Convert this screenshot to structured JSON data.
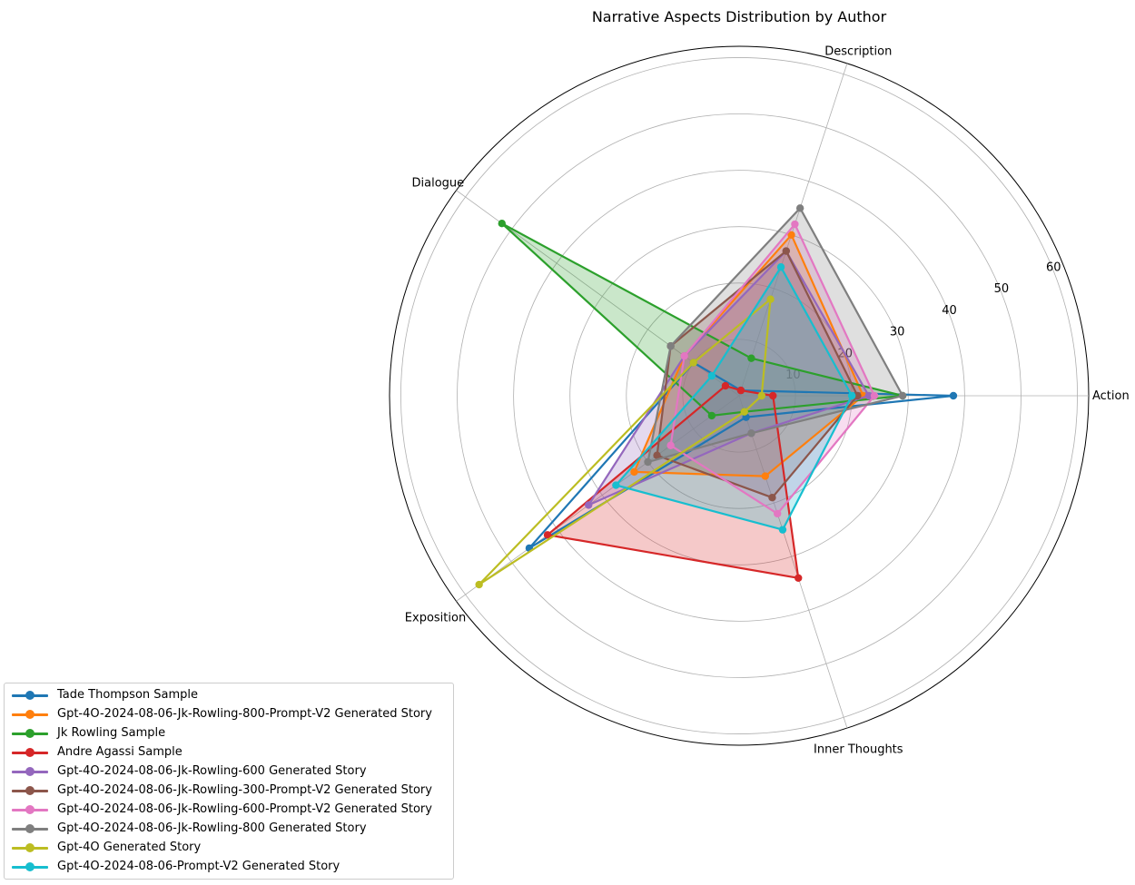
{
  "chart_data": {
    "type": "radar",
    "title": "Narrative Aspects Distribution by Author",
    "axes": [
      "Action",
      "Description",
      "Dialogue",
      "Exposition",
      "Inner Thoughts"
    ],
    "radial_ticks": [
      "10",
      "20",
      "30",
      "40",
      "50",
      "60"
    ],
    "rlim": [
      0,
      62
    ],
    "grid": true,
    "legend_position": "lower-left",
    "series": [
      {
        "name": "Tade Thompson Sample",
        "color": "#1f77b4",
        "values": [
          38,
          1,
          10,
          46,
          4
        ],
        "filled": false
      },
      {
        "name": "Gpt-4O-2024-08-06-Jk-Rowling-800-Prompt-V2 Generated Story",
        "color": "#ff7f0e",
        "values": [
          22,
          30,
          12,
          23,
          15
        ],
        "filled": true
      },
      {
        "name": "Jk Rowling Sample",
        "color": "#2ca02c",
        "values": [
          29,
          7,
          52,
          6,
          3
        ],
        "filled": true
      },
      {
        "name": "Andre Agassi Sample",
        "color": "#d62728",
        "values": [
          6,
          1,
          3,
          42,
          34
        ],
        "filled": true
      },
      {
        "name": "Gpt-4O-2024-08-06-Jk-Rowling-600 Generated Story",
        "color": "#9467bd",
        "values": [
          23,
          27,
          12,
          33,
          7
        ],
        "filled": true
      },
      {
        "name": "Gpt-4O-2024-08-06-Jk-Rowling-300-Prompt-V2 Generated Story",
        "color": "#8c564b",
        "values": [
          21,
          27,
          15,
          18,
          19
        ],
        "filled": true
      },
      {
        "name": "Gpt-4O-2024-08-06-Jk-Rowling-600-Prompt-V2 Generated Story",
        "color": "#e377c2",
        "values": [
          24,
          32,
          12,
          15,
          22
        ],
        "filled": true
      },
      {
        "name": "Gpt-4O-2024-08-06-Jk-Rowling-800 Generated Story",
        "color": "#7f7f7f",
        "values": [
          29,
          35,
          15,
          20,
          7
        ],
        "filled": true
      },
      {
        "name": "Gpt-4O Generated Story",
        "color": "#bcbd22",
        "values": [
          4,
          18,
          10,
          57,
          3
        ],
        "filled": false
      },
      {
        "name": "Gpt-4O-2024-08-06-Prompt-V2 Generated Story",
        "color": "#17becf",
        "values": [
          20,
          24,
          6,
          27,
          25
        ],
        "filled": true
      }
    ]
  }
}
